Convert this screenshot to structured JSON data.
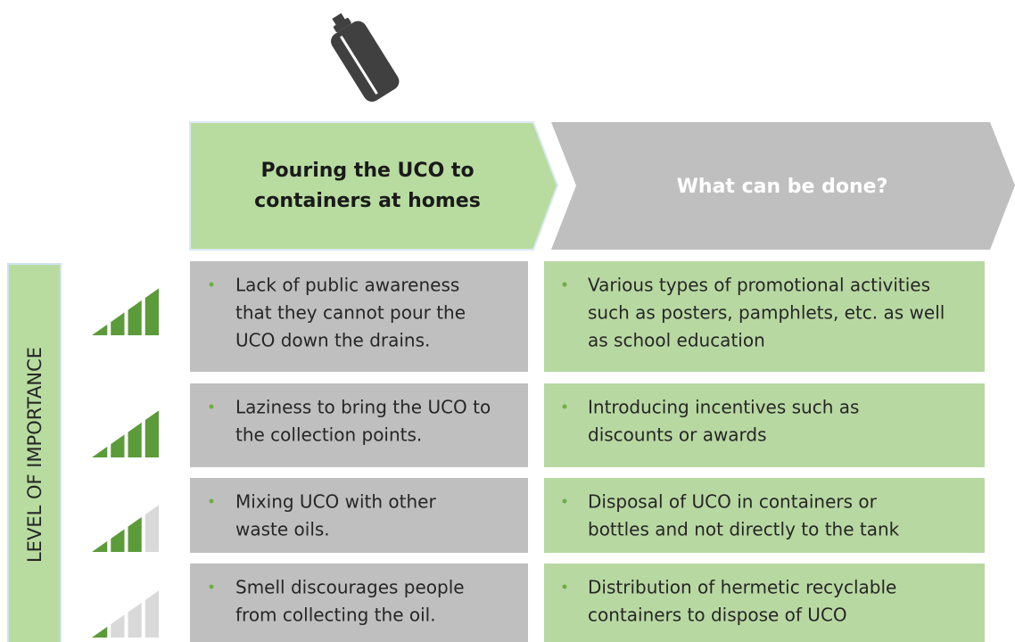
{
  "header": {
    "title": [
      "Pouring the UCO to",
      "containers at homes"
    ],
    "subtitle": "What can be done?"
  },
  "side_label": "LEVEL OF IMPORTANCE",
  "importance_max": 4,
  "rows": [
    {
      "problem": [
        "Lack of public awareness",
        "that they cannot pour the",
        "UCO down the drains."
      ],
      "solution": [
        "Various types of promotional activities",
        "such as posters, pamphlets, etc. as well",
        "as school education"
      ],
      "importance": 4
    },
    {
      "problem": [
        "Laziness to bring the UCO to",
        "the collection points."
      ],
      "solution": [
        "Introducing incentives such as",
        "discounts or awards"
      ],
      "importance": 4
    },
    {
      "problem": [
        "Mixing UCO with other",
        "waste oils."
      ],
      "solution": [
        "Disposal of UCO in containers or",
        "bottles and not directly to the tank"
      ],
      "importance": 3
    },
    {
      "problem": [
        "Smell discourages people",
        "from collecting the oil."
      ],
      "solution": [
        "Distribution of hermetic recyclable",
        "containers to dispose of UCO"
      ],
      "importance": 1
    }
  ]
}
